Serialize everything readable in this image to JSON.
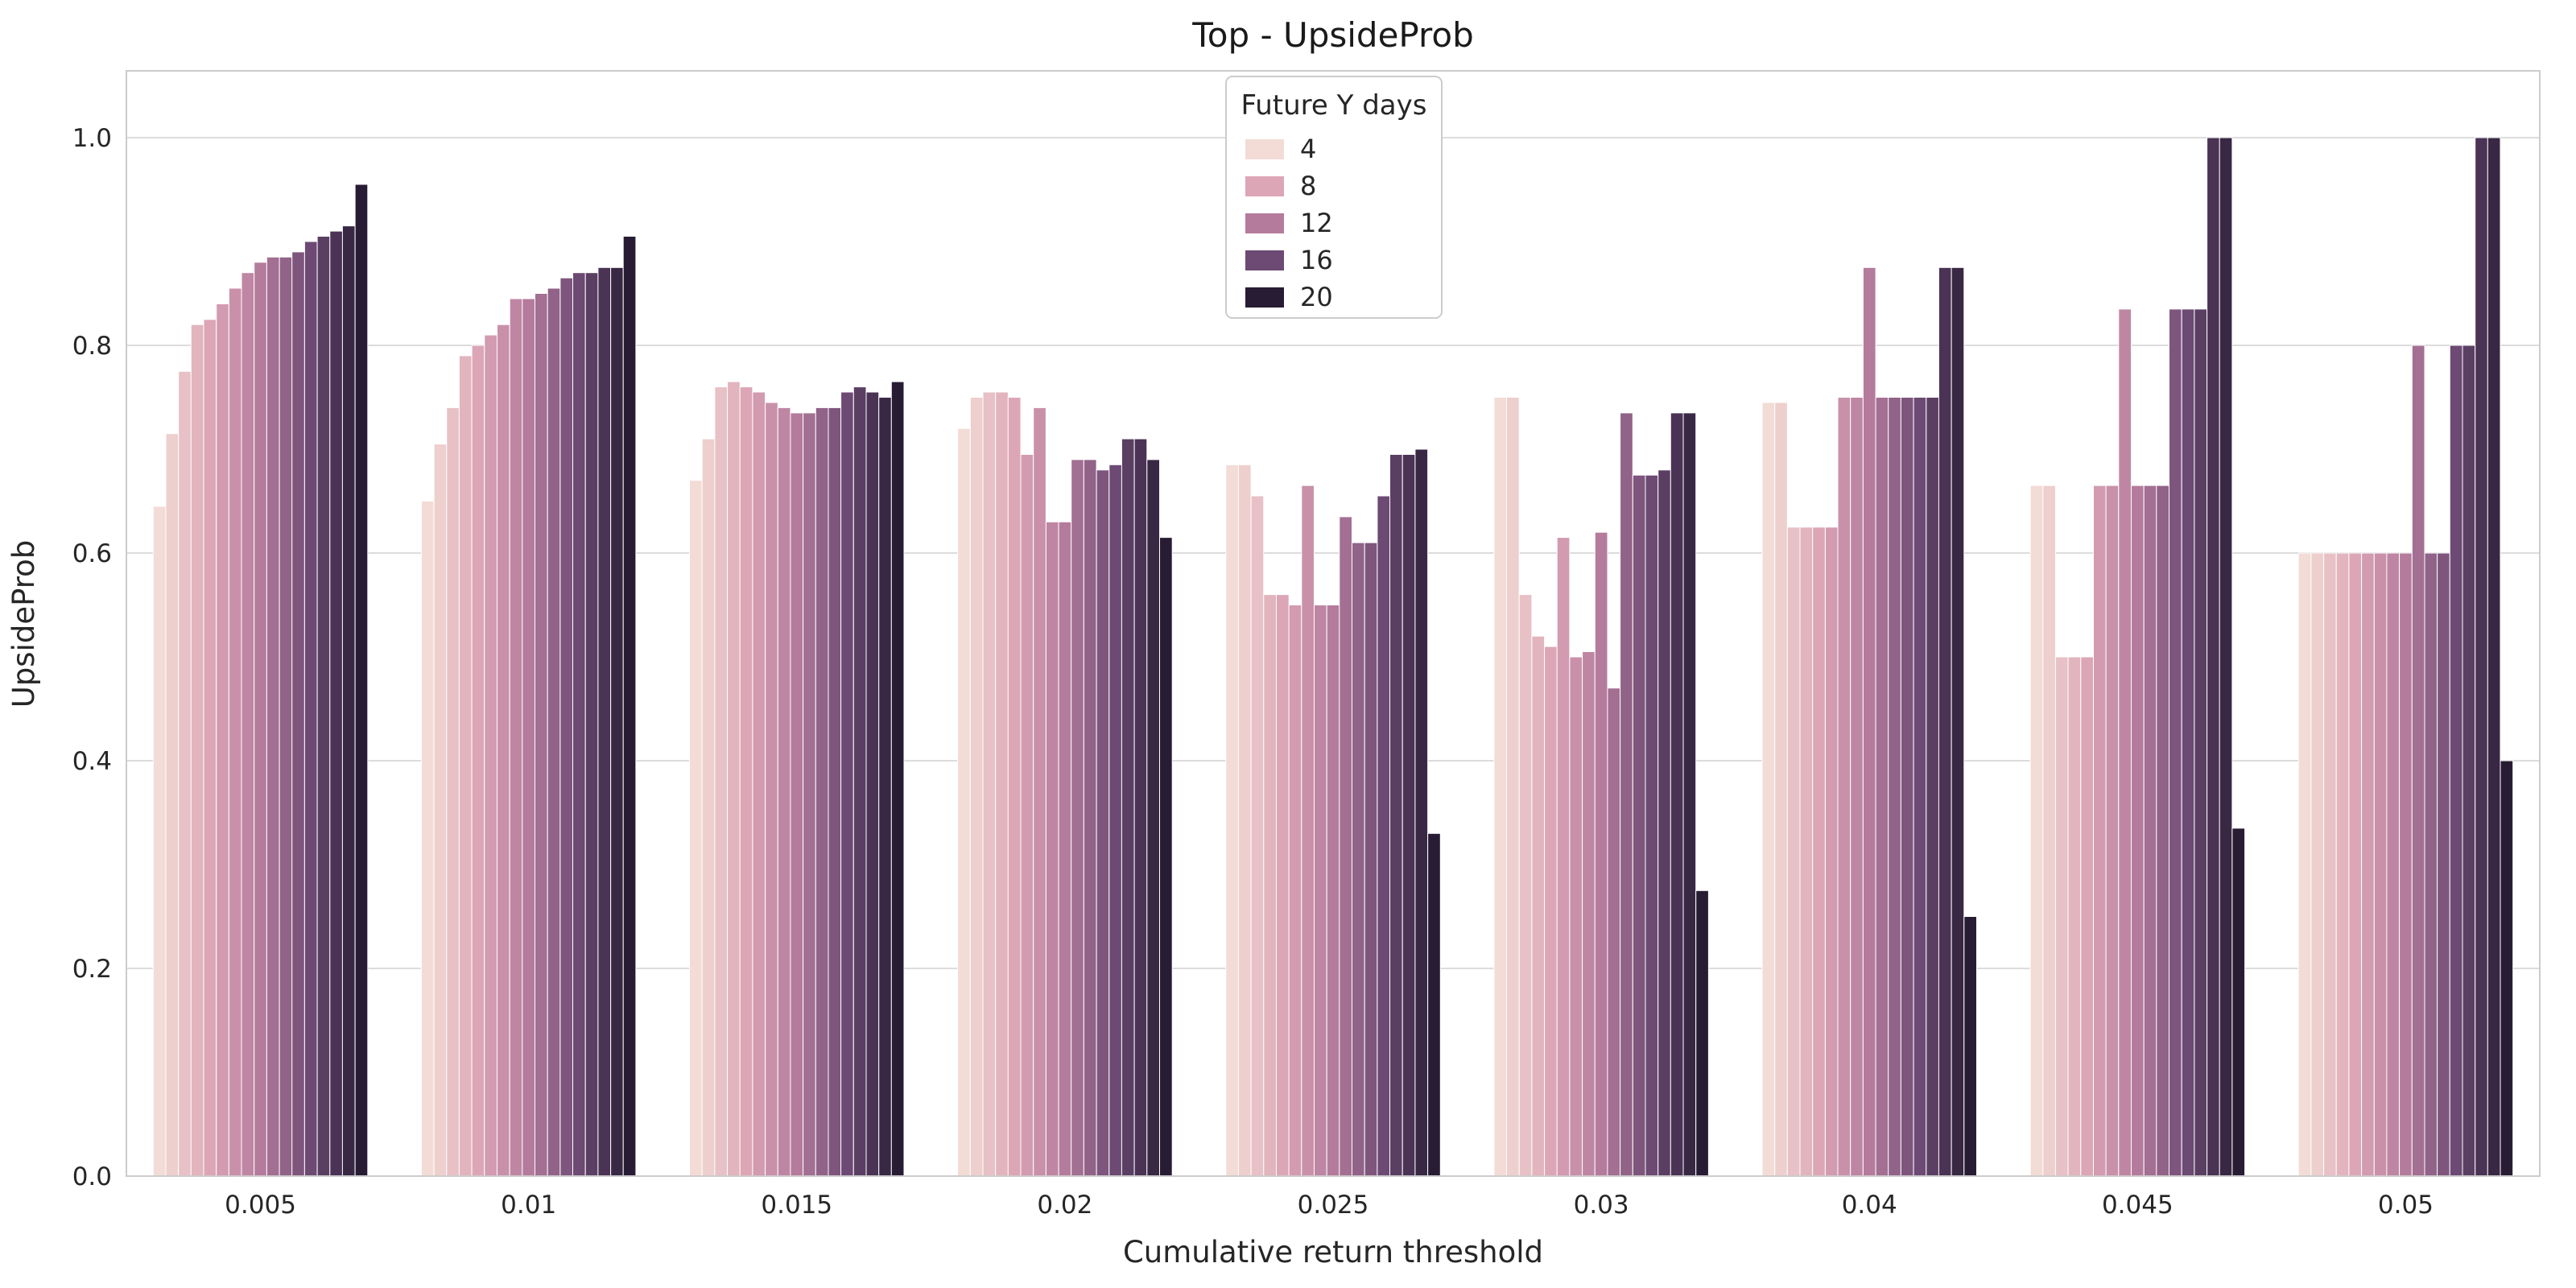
{
  "figure": {
    "background": "#ffffff",
    "grid_color": "#dcdcdc",
    "spine_color": "#cccccc",
    "text_color": "#262626"
  },
  "legend": {
    "title": "Future Y days",
    "entries": [
      {
        "label": "4",
        "color": "#f2dcd5"
      },
      {
        "label": "8",
        "color": "#dca6b6"
      },
      {
        "label": "12",
        "color": "#b57b9c"
      },
      {
        "label": "16",
        "color": "#6c4a73"
      },
      {
        "label": "20",
        "color": "#281c34"
      }
    ]
  },
  "chart_data": {
    "type": "bar",
    "title": "Top - UpsideProb",
    "xlabel": "Cumulative return threshold",
    "ylabel": "UpsideProb",
    "ylim": [
      0,
      1.0
    ],
    "yticks": [
      0.0,
      0.2,
      0.4,
      0.6,
      0.8,
      1.0
    ],
    "grid": true,
    "legend_position": "upper center",
    "hue_label": "Future Y days",
    "hue_values": [
      4,
      5,
      6,
      7,
      8,
      9,
      10,
      11,
      12,
      13,
      14,
      15,
      16,
      17,
      18,
      19,
      20
    ],
    "palette_stops": [
      [
        0.0,
        "#f2dcd5"
      ],
      [
        0.25,
        "#dca6b6"
      ],
      [
        0.5,
        "#b57b9c"
      ],
      [
        0.75,
        "#6c4a73"
      ],
      [
        1.0,
        "#281c34"
      ]
    ],
    "categories": [
      "0.005",
      "0.01",
      "0.015",
      "0.02",
      "0.025",
      "0.03",
      "0.04",
      "0.045",
      "0.05"
    ],
    "series": [
      {
        "name": "4",
        "values": [
          0.645,
          0.65,
          0.67,
          0.72,
          0.685,
          0.75,
          0.745,
          0.665,
          0.6
        ]
      },
      {
        "name": "5",
        "values": [
          0.715,
          0.705,
          0.71,
          0.75,
          0.685,
          0.75,
          0.745,
          0.665,
          0.6
        ]
      },
      {
        "name": "6",
        "values": [
          0.775,
          0.74,
          0.76,
          0.755,
          0.655,
          0.56,
          0.625,
          0.5,
          0.6
        ]
      },
      {
        "name": "7",
        "values": [
          0.82,
          0.79,
          0.765,
          0.755,
          0.56,
          0.52,
          0.625,
          0.5,
          0.6
        ]
      },
      {
        "name": "8",
        "values": [
          0.825,
          0.8,
          0.76,
          0.75,
          0.56,
          0.51,
          0.625,
          0.5,
          0.6
        ]
      },
      {
        "name": "9",
        "values": [
          0.84,
          0.81,
          0.755,
          0.695,
          0.55,
          0.615,
          0.625,
          0.665,
          0.6
        ]
      },
      {
        "name": "10",
        "values": [
          0.855,
          0.82,
          0.745,
          0.74,
          0.665,
          0.5,
          0.75,
          0.665,
          0.6
        ]
      },
      {
        "name": "11",
        "values": [
          0.87,
          0.845,
          0.74,
          0.63,
          0.55,
          0.505,
          0.75,
          0.835,
          0.6
        ]
      },
      {
        "name": "12",
        "values": [
          0.88,
          0.845,
          0.735,
          0.63,
          0.55,
          0.62,
          0.875,
          0.665,
          0.6
        ]
      },
      {
        "name": "13",
        "values": [
          0.885,
          0.85,
          0.735,
          0.69,
          0.635,
          0.47,
          0.75,
          0.665,
          0.8
        ]
      },
      {
        "name": "14",
        "values": [
          0.885,
          0.855,
          0.74,
          0.69,
          0.61,
          0.735,
          0.75,
          0.665,
          0.6
        ]
      },
      {
        "name": "15",
        "values": [
          0.89,
          0.865,
          0.74,
          0.68,
          0.61,
          0.675,
          0.75,
          0.835,
          0.6
        ]
      },
      {
        "name": "16",
        "values": [
          0.9,
          0.87,
          0.755,
          0.685,
          0.655,
          0.675,
          0.75,
          0.835,
          0.8
        ]
      },
      {
        "name": "17",
        "values": [
          0.905,
          0.87,
          0.76,
          0.71,
          0.695,
          0.68,
          0.75,
          0.835,
          0.8
        ]
      },
      {
        "name": "18",
        "values": [
          0.91,
          0.875,
          0.755,
          0.71,
          0.695,
          0.735,
          0.875,
          1.0,
          1.0
        ]
      },
      {
        "name": "19",
        "values": [
          0.915,
          0.875,
          0.75,
          0.69,
          0.7,
          0.735,
          0.875,
          1.0,
          1.0
        ]
      },
      {
        "name": "20",
        "values": [
          0.955,
          0.905,
          0.765,
          0.615,
          0.33,
          0.275,
          0.25,
          0.335,
          0.4
        ]
      }
    ]
  }
}
